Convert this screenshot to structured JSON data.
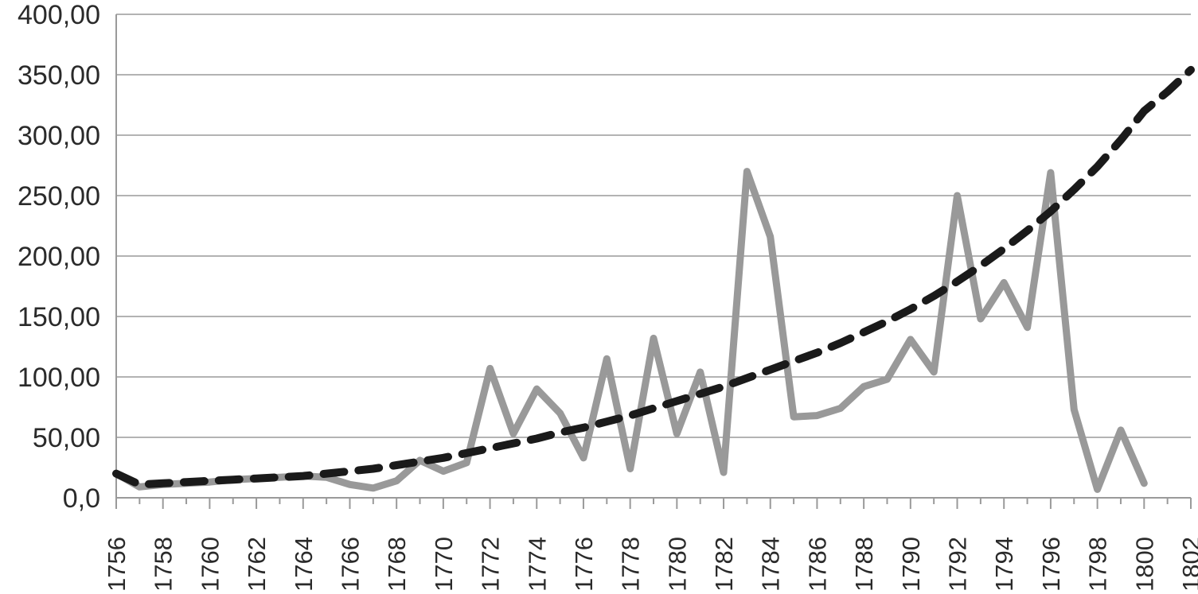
{
  "chart_data": {
    "type": "line",
    "title": "",
    "xlabel": "",
    "ylabel": "",
    "xlim": [
      1756,
      1802
    ],
    "ylim": [
      0,
      400
    ],
    "grid": true,
    "yticks": [
      0,
      50,
      100,
      150,
      200,
      250,
      300,
      350,
      400
    ],
    "ytick_labels": [
      "0,0",
      "50,00",
      "100,00",
      "150,00",
      "200,00",
      "250,00",
      "300,00",
      "350,00",
      "400,00"
    ],
    "xticks": [
      1756,
      1758,
      1760,
      1762,
      1764,
      1766,
      1768,
      1770,
      1772,
      1774,
      1776,
      1778,
      1780,
      1782,
      1784,
      1786,
      1788,
      1790,
      1792,
      1794,
      1796,
      1798,
      1800,
      1802
    ],
    "xtick_labels": [
      "1756",
      "1758",
      "1760",
      "1762",
      "1764",
      "1766",
      "1768",
      "1770",
      "1772",
      "1774",
      "1776",
      "1778",
      "1780",
      "1782",
      "1784",
      "1786",
      "1788",
      "1790",
      "1792",
      "1794",
      "1796",
      "1798",
      "1800",
      "1802"
    ],
    "series": [
      {
        "color": "#999999",
        "style": "solid",
        "x": [
          1756,
          1757,
          1758,
          1759,
          1760,
          1761,
          1762,
          1763,
          1764,
          1765,
          1766,
          1767,
          1768,
          1769,
          1770,
          1771,
          1772,
          1773,
          1774,
          1775,
          1776,
          1777,
          1778,
          1779,
          1780,
          1781,
          1782,
          1783,
          1784,
          1785,
          1786,
          1787,
          1788,
          1789,
          1790,
          1791,
          1792,
          1793,
          1794,
          1795,
          1796,
          1797,
          1798,
          1799,
          1800
        ],
        "values": [
          20,
          9,
          11,
          12,
          13,
          15,
          16,
          17,
          18,
          17,
          11,
          8,
          14,
          31,
          22,
          29,
          107,
          53,
          90,
          70,
          33,
          115,
          24,
          132,
          53,
          104,
          21,
          270,
          216,
          67,
          68,
          74,
          92,
          98,
          131,
          104,
          250,
          148,
          178,
          141,
          269,
          73,
          7,
          56,
          12
        ]
      },
      {
        "color": "#1a1a1a",
        "style": "dashed",
        "x": [
          1756,
          1757,
          1758,
          1759,
          1760,
          1761,
          1762,
          1763,
          1764,
          1765,
          1766,
          1767,
          1768,
          1769,
          1770,
          1771,
          1772,
          1773,
          1774,
          1775,
          1776,
          1777,
          1778,
          1779,
          1780,
          1781,
          1782,
          1783,
          1784,
          1785,
          1786,
          1787,
          1788,
          1789,
          1790,
          1791,
          1792,
          1793,
          1794,
          1795,
          1796,
          1797,
          1798,
          1799,
          1800,
          1801,
          1802
        ],
        "values": [
          20,
          11,
          12,
          13,
          14,
          15,
          16,
          17,
          18,
          20,
          22,
          24,
          27,
          30,
          33,
          37,
          41,
          45,
          49,
          54,
          58,
          63,
          68,
          74,
          80,
          86,
          92,
          99,
          106,
          113,
          120,
          128,
          137,
          146,
          156,
          167,
          179,
          192,
          206,
          221,
          237,
          255,
          274,
          296,
          320,
          336,
          354
        ]
      }
    ]
  }
}
